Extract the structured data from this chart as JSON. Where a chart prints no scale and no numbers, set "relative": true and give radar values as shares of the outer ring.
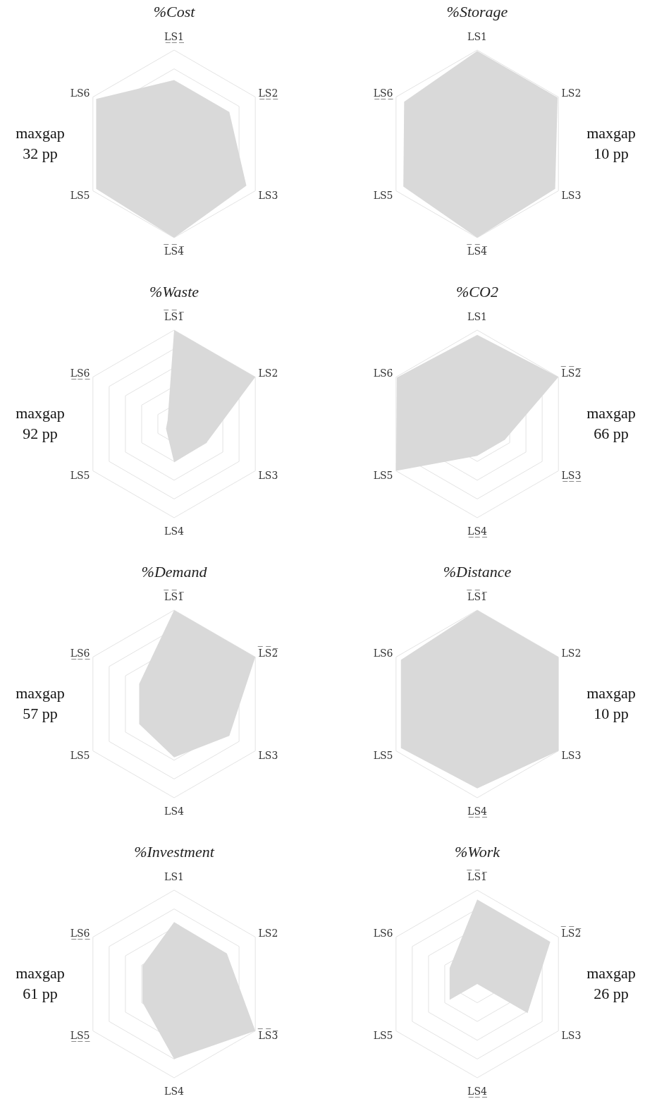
{
  "chart_data": [
    {
      "type": "radar",
      "title": "%Cost",
      "categories": [
        "L̲S̲1̲",
        "L̲S̲2̲",
        "LS3",
        "L̅S̅4̅",
        "LS5",
        "LS6"
      ],
      "relative": true,
      "grid": true,
      "annotations": [
        "maxgap 32 pp"
      ],
      "series": [
        {
          "color": "#d9d9d9",
          "values": [
            0.68,
            0.68,
            0.89,
            1.0,
            0.96,
            0.96
          ]
        }
      ]
    },
    {
      "type": "radar",
      "title": "%Storage",
      "categories": [
        "LS1",
        "LS2",
        "LS3",
        "L̅S̅4̅",
        "LS5",
        "L̲S̲6̲"
      ],
      "relative": true,
      "grid": true,
      "annotations": [
        "maxgap 10 pp"
      ],
      "series": [
        {
          "color": "#d9d9d9",
          "values": [
            0.99,
            0.99,
            0.96,
            1.0,
            0.91,
            0.9
          ]
        }
      ]
    },
    {
      "type": "radar",
      "title": "%Waste",
      "categories": [
        "L̅S̅1̅",
        "LS2",
        "LS3",
        "LS4",
        "LS5",
        "L̲S̲6̲"
      ],
      "relative": true,
      "grid": true,
      "annotations": [
        "maxgap 92 pp"
      ],
      "series": [
        {
          "color": "#d9d9d9",
          "values": [
            1.0,
            1.0,
            0.4,
            0.41,
            0.1,
            0.08
          ]
        }
      ]
    },
    {
      "type": "radar",
      "title": "%CO2",
      "categories": [
        "LS1",
        "L̅S̅2̅",
        "L̲S̲3̲",
        "L̲S̲4̲",
        "LS5",
        "LS6"
      ],
      "relative": true,
      "grid": true,
      "annotations": [
        "maxgap 66 pp"
      ],
      "series": [
        {
          "color": "#d9d9d9",
          "values": [
            0.95,
            1.0,
            0.34,
            0.34,
            1.0,
            0.99
          ]
        }
      ]
    },
    {
      "type": "radar",
      "title": "%Demand",
      "categories": [
        "L̅S̅1̅",
        "L̅S̅2̅",
        "LS3",
        "LS4",
        "LS5",
        "L̲S̲6̲"
      ],
      "relative": true,
      "grid": true,
      "annotations": [
        "maxgap 57 pp"
      ],
      "series": [
        {
          "color": "#d9d9d9",
          "values": [
            1.0,
            1.0,
            0.68,
            0.57,
            0.43,
            0.43
          ]
        }
      ]
    },
    {
      "type": "radar",
      "title": "%Distance",
      "categories": [
        "L̅S̅1̅",
        "LS2",
        "LS3",
        "L̲S̲4̲",
        "LS5",
        "LS6"
      ],
      "relative": true,
      "grid": true,
      "annotations": [
        "maxgap 10 pp"
      ],
      "series": [
        {
          "color": "#d9d9d9",
          "values": [
            1.0,
            1.0,
            1.0,
            0.9,
            0.94,
            0.94
          ]
        }
      ]
    },
    {
      "type": "radar",
      "title": "%Investment",
      "categories": [
        "LS1",
        "LS2",
        "L̅S̅3̅",
        "LS4",
        "L̲S̲5̲",
        "L̲S̲6̲"
      ],
      "relative": true,
      "grid": true,
      "annotations": [
        "maxgap 61 pp"
      ],
      "series": [
        {
          "color": "#d9d9d9",
          "values": [
            0.66,
            0.65,
            1.0,
            0.8,
            0.39,
            0.39
          ]
        }
      ]
    },
    {
      "type": "radar",
      "title": "%Work",
      "categories": [
        "L̅S̅1̅",
        "L̅S̅2̅",
        "LS3",
        "L̲S̲4̲",
        "LS5",
        "LS6"
      ],
      "relative": true,
      "grid": true,
      "annotations": [
        "maxgap 26 pp"
      ],
      "series": [
        {
          "color": "#d9d9d9",
          "values": [
            0.9,
            0.9,
            0.62,
            0.0,
            0.34,
            0.34
          ]
        }
      ]
    }
  ]
}
